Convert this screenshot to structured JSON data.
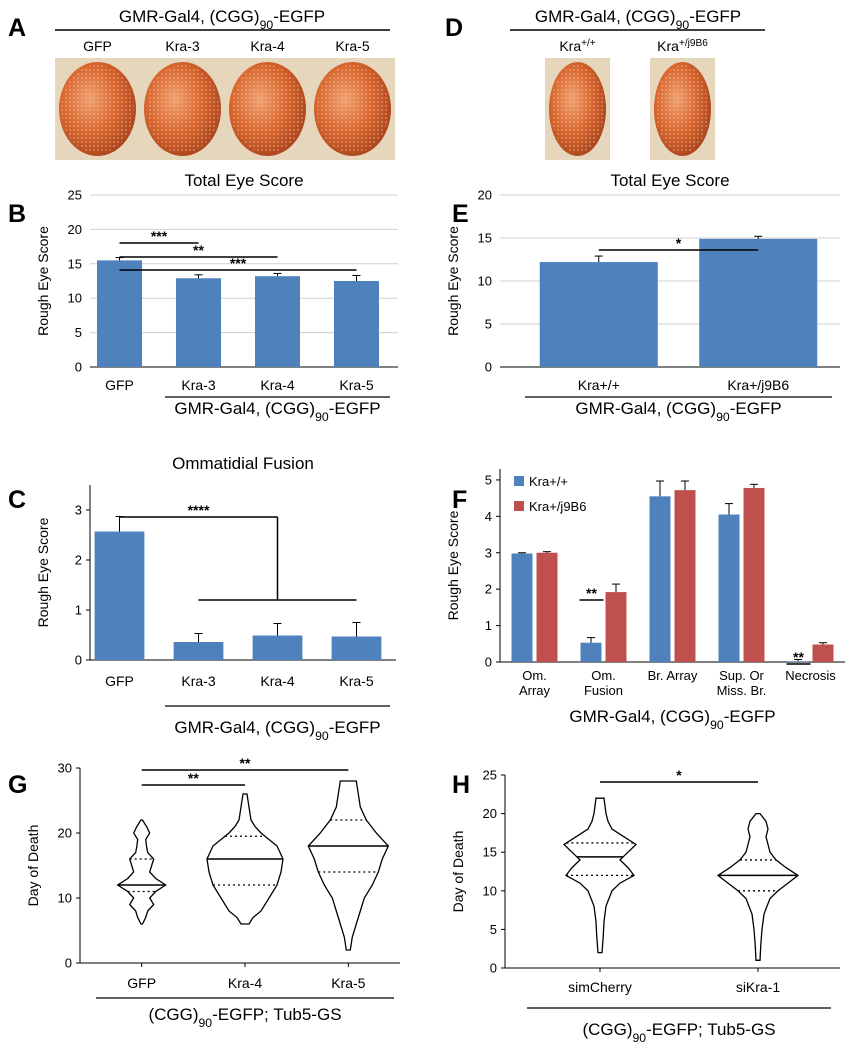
{
  "photo_panels": [
    {
      "panel": "A",
      "title": [
        {
          "text": "GMR-Gal4, (CGG)"
        },
        {
          "text": "90",
          "shift": "sub"
        },
        {
          "text": "-EGFP"
        }
      ],
      "labels": [
        "GFP",
        "Kra-3",
        "Kra-4",
        "Kra-5"
      ]
    },
    {
      "panel": "D",
      "title": [
        {
          "text": "GMR-Gal4, (CGG)"
        },
        {
          "text": "90",
          "shift": "sub"
        },
        {
          "text": "-EGFP"
        }
      ],
      "labels": [
        [
          {
            "text": "Kra"
          },
          {
            "text": "+/+",
            "shift": "super"
          }
        ],
        [
          {
            "text": "Kra"
          },
          {
            "text": "+/j9B6",
            "shift": "super"
          }
        ]
      ]
    }
  ],
  "chart_data": [
    {
      "panel": "B",
      "type": "bar",
      "title": "Total Eye Score",
      "y_label": "Rough Eye Score",
      "categories": [
        "GFP",
        "Kra-3",
        "Kra-4",
        "Kra-5"
      ],
      "values": [
        15.5,
        12.9,
        13.2,
        12.5
      ],
      "errors": [
        0.4,
        0.5,
        0.4,
        0.8
      ],
      "color": "#4f81bd",
      "ylim": [
        0,
        25
      ],
      "yticks": [
        0,
        5,
        10,
        15,
        20,
        25
      ],
      "grid": true,
      "group": [
        1,
        3
      ],
      "group_label": [
        {
          "text": "GMR-Gal4, (CGG)"
        },
        {
          "text": "90",
          "shift": "sub"
        },
        {
          "text": "-EGFP"
        }
      ],
      "significance": [
        {
          "label": "***",
          "between": [
            0,
            1
          ]
        },
        {
          "label": "**",
          "between": [
            0,
            2
          ]
        },
        {
          "label": "***",
          "between": [
            0,
            3
          ]
        }
      ]
    },
    {
      "panel": "C",
      "type": "bar",
      "title": "Ommatidial Fusion",
      "y_label": "Rough Eye Score",
      "categories": [
        "GFP",
        "Kra-3",
        "Kra-4",
        "Kra-5"
      ],
      "values": [
        2.57,
        0.36,
        0.49,
        0.47
      ],
      "errors": [
        0.3,
        0.17,
        0.24,
        0.28
      ],
      "color": "#4f81bd",
      "ylim": [
        0,
        3.5
      ],
      "yticks": [
        0,
        1,
        2,
        3
      ],
      "grid": false,
      "group": [
        1,
        3
      ],
      "group_label": [
        {
          "text": "GMR-Gal4, (CGG)"
        },
        {
          "text": "90",
          "shift": "sub"
        },
        {
          "text": "-EGFP"
        }
      ],
      "significance": [
        {
          "label": "****",
          "between": [
            0,
            [
              1,
              3
            ]
          ]
        }
      ]
    },
    {
      "panel": "E",
      "type": "bar",
      "title": "Total Eye Score",
      "y_label": "Rough Eye Score",
      "categories": [
        "Kra+/+",
        "Kra+/j9B6"
      ],
      "values": [
        12.2,
        14.9
      ],
      "errors": [
        0.7,
        0.3
      ],
      "color": "#4f81bd",
      "ylim": [
        0,
        20
      ],
      "yticks": [
        0,
        5,
        10,
        15,
        20
      ],
      "grid": true,
      "group": [
        0,
        1
      ],
      "group_label": [
        {
          "text": "GMR-Gal4, (CGG)"
        },
        {
          "text": "90",
          "shift": "sub"
        },
        {
          "text": "-EGFP"
        }
      ],
      "significance": [
        {
          "label": "*",
          "between": [
            0,
            1
          ]
        }
      ]
    },
    {
      "panel": "F",
      "type": "grouped_bar",
      "y_label": "Rough Eye Score",
      "categories": [
        [
          "Om.",
          "Array"
        ],
        [
          "Om.",
          "Fusion"
        ],
        [
          "Br. Array"
        ],
        [
          "Sup. Or",
          "Miss. Br."
        ],
        [
          "Necrosis"
        ]
      ],
      "series": [
        {
          "name": "Kra+/+",
          "color": "#4f81bd",
          "values": [
            2.98,
            0.53,
            4.55,
            4.05,
            0.02
          ],
          "errors": [
            0.02,
            0.14,
            0.42,
            0.3,
            0.05
          ]
        },
        {
          "name": "Kra+/j9B6",
          "color": "#c0504d",
          "values": [
            3.0,
            1.92,
            4.72,
            4.78,
            0.48
          ],
          "errors": [
            0.03,
            0.22,
            0.25,
            0.1,
            0.05
          ]
        }
      ],
      "ylim": [
        0,
        5.3
      ],
      "yticks": [
        0,
        1,
        2,
        3,
        4,
        5
      ],
      "grid": false,
      "legend": "upper left",
      "x_label": [
        {
          "text": "GMR-Gal4, (CGG)"
        },
        {
          "text": "90",
          "shift": "sub"
        },
        {
          "text": "-EGFP"
        }
      ],
      "significance": [
        {
          "label": "**",
          "at": 1
        },
        {
          "label": "**",
          "at": 4
        }
      ]
    },
    {
      "panel": "G",
      "type": "violin",
      "y_label": "Day of Death",
      "categories": [
        "GFP",
        "Kra-4",
        "Kra-5"
      ],
      "ylim": [
        0,
        30
      ],
      "yticks": [
        0,
        10,
        20,
        30
      ],
      "grid": false,
      "violins": [
        {
          "q1": 11,
          "median": 12,
          "q3": 16,
          "density_at": [
            6,
            7,
            8,
            9,
            10,
            11,
            12,
            13,
            14,
            15,
            16,
            17,
            18,
            19,
            20,
            21,
            22
          ],
          "density": [
            0.02,
            0.1,
            0.15,
            0.3,
            0.2,
            0.35,
            0.6,
            0.35,
            0.2,
            0.25,
            0.3,
            0.15,
            0.12,
            0.1,
            0.2,
            0.12,
            0.02
          ]
        },
        {
          "q1": 12,
          "median": 16,
          "q3": 19.5,
          "density_at": [
            6,
            7,
            8,
            10,
            12,
            14,
            16,
            18,
            19,
            20,
            21,
            22,
            24,
            26
          ],
          "density": [
            0.1,
            0.2,
            0.4,
            0.6,
            0.8,
            0.9,
            0.95,
            0.8,
            0.6,
            0.4,
            0.25,
            0.15,
            0.1,
            0.05
          ]
        },
        {
          "q1": 14,
          "median": 18,
          "q3": 22,
          "density_at": [
            2,
            4,
            6,
            8,
            10,
            12,
            14,
            16,
            18,
            20,
            22,
            24,
            26,
            28
          ],
          "density": [
            0.05,
            0.1,
            0.2,
            0.3,
            0.4,
            0.6,
            0.75,
            0.85,
            1.0,
            0.7,
            0.45,
            0.3,
            0.25,
            0.2
          ]
        }
      ],
      "group": [
        0,
        2
      ],
      "group_label": [
        {
          "text": "(CGG)"
        },
        {
          "text": "90",
          "shift": "sub"
        },
        {
          "text": "-EGFP; Tub5-GS"
        }
      ],
      "significance": [
        {
          "label": "**",
          "between": [
            0,
            1
          ]
        },
        {
          "label": "**",
          "between": [
            0,
            2
          ]
        }
      ]
    },
    {
      "panel": "H",
      "type": "violin",
      "y_label": "Day of Death",
      "categories": [
        "simCherry",
        "siKra-1"
      ],
      "ylim": [
        0,
        25
      ],
      "yticks": [
        0,
        5,
        10,
        15,
        20,
        25
      ],
      "grid": false,
      "violins": [
        {
          "q1": 12,
          "median": 14.4,
          "q3": 16.2,
          "density_at": [
            2,
            4,
            6,
            8,
            10,
            11,
            12,
            13,
            14,
            15,
            16,
            17,
            18,
            19,
            20,
            22
          ],
          "density": [
            0.05,
            0.08,
            0.1,
            0.15,
            0.3,
            0.5,
            0.85,
            0.7,
            0.5,
            0.7,
            0.9,
            0.6,
            0.3,
            0.2,
            0.15,
            0.1
          ]
        },
        {
          "q1": 10,
          "median": 12,
          "q3": 14,
          "density_at": [
            1,
            3,
            5,
            7,
            9,
            10,
            11,
            12,
            13,
            14,
            15,
            16,
            17,
            18,
            19,
            20
          ],
          "density": [
            0.05,
            0.07,
            0.1,
            0.15,
            0.3,
            0.5,
            0.75,
            1.0,
            0.7,
            0.45,
            0.3,
            0.25,
            0.2,
            0.25,
            0.2,
            0.05
          ]
        }
      ],
      "group": [
        0,
        1
      ],
      "group_label": [
        {
          "text": "(CGG)"
        },
        {
          "text": "90",
          "shift": "sub"
        },
        {
          "text": "-EGFP; Tub5-GS"
        }
      ],
      "significance": [
        {
          "label": "*",
          "between": [
            0,
            1
          ]
        }
      ]
    }
  ]
}
